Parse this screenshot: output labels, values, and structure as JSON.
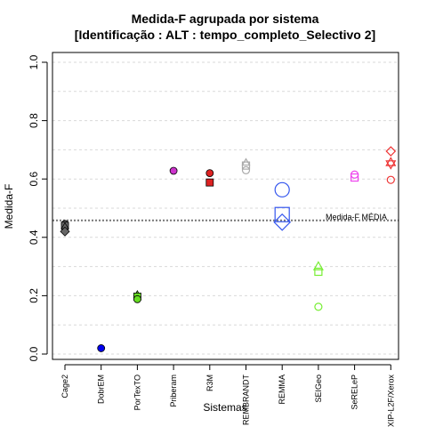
{
  "chart_data": {
    "type": "scatter",
    "title_line1": "Medida-F agrupada por sistema",
    "title_line2": "[Identificação : ALT : tempo_completo_Selectivo 2]",
    "xlabel": "Sistemas",
    "ylabel": "Medida-F",
    "ylim": [
      0,
      1.0
    ],
    "yticks": [
      {
        "value": 0.0,
        "label": "0.0"
      },
      {
        "value": 0.2,
        "label": "0.2"
      },
      {
        "value": 0.4,
        "label": "0.4"
      },
      {
        "value": 0.6,
        "label": "0.6"
      },
      {
        "value": 0.8,
        "label": "0.8"
      },
      {
        "value": 1.0,
        "label": "1.0"
      }
    ],
    "grid": true,
    "categories": [
      "Cage2",
      "DobrEM",
      "PorTexTO",
      "Priberam",
      "R3M",
      "REMBRANDT",
      "REMMA",
      "SEIGeo",
      "SeRELeP",
      "XIP-L2F/Xerox"
    ],
    "mean_line": {
      "value": 0.458,
      "label": "Medida-F MÉDIA"
    },
    "points": [
      {
        "category": 0,
        "y": 0.446,
        "shape": "circle",
        "size": 4,
        "color": "#666666",
        "fill": true
      },
      {
        "category": 0,
        "y": 0.44,
        "shape": "square",
        "size": 4,
        "color": "#666666",
        "fill": true
      },
      {
        "category": 0,
        "y": 0.436,
        "shape": "triangle",
        "size": 4,
        "color": "#666666",
        "fill": true
      },
      {
        "category": 0,
        "y": 0.42,
        "shape": "diamond",
        "size": 5,
        "color": "#666666",
        "fill": true
      },
      {
        "category": 1,
        "y": 0.02,
        "shape": "circle",
        "size": 4,
        "color": "#0000ee",
        "fill": true
      },
      {
        "category": 2,
        "y": 0.203,
        "shape": "triangle",
        "size": 4,
        "color": "#66dd22",
        "fill": true
      },
      {
        "category": 2,
        "y": 0.197,
        "shape": "square",
        "size": 4,
        "color": "#66dd22",
        "fill": true
      },
      {
        "category": 2,
        "y": 0.188,
        "shape": "circle",
        "size": 4,
        "color": "#66dd22",
        "fill": true
      },
      {
        "category": 3,
        "y": 0.628,
        "shape": "circle",
        "size": 4,
        "color": "#cc33cc",
        "fill": true
      },
      {
        "category": 4,
        "y": 0.62,
        "shape": "circle",
        "size": 4,
        "color": "#dd2222",
        "fill": true
      },
      {
        "category": 4,
        "y": 0.588,
        "shape": "square",
        "size": 4,
        "color": "#dd2222",
        "fill": true
      },
      {
        "category": 5,
        "y": 0.655,
        "shape": "triangle",
        "size": 4,
        "color": "#aaaaaa",
        "fill": false
      },
      {
        "category": 5,
        "y": 0.646,
        "shape": "square",
        "size": 4,
        "color": "#aaaaaa",
        "fill": false
      },
      {
        "category": 5,
        "y": 0.63,
        "shape": "circle",
        "size": 4,
        "color": "#aaaaaa",
        "fill": false
      },
      {
        "category": 6,
        "y": 0.563,
        "shape": "circle",
        "size": 8,
        "color": "#3355ee",
        "fill": false
      },
      {
        "category": 6,
        "y": 0.478,
        "shape": "square",
        "size": 8,
        "color": "#3355ee",
        "fill": false
      },
      {
        "category": 6,
        "y": 0.452,
        "shape": "diamond",
        "size": 9,
        "color": "#3355ee",
        "fill": false
      },
      {
        "category": 7,
        "y": 0.298,
        "shape": "triangle",
        "size": 5,
        "color": "#77ee33",
        "fill": false
      },
      {
        "category": 7,
        "y": 0.282,
        "shape": "square",
        "size": 4,
        "color": "#77ee33",
        "fill": false
      },
      {
        "category": 7,
        "y": 0.162,
        "shape": "circle",
        "size": 4,
        "color": "#77ee33",
        "fill": false
      },
      {
        "category": 8,
        "y": 0.615,
        "shape": "circle",
        "size": 4,
        "color": "#ee44ee",
        "fill": false
      },
      {
        "category": 8,
        "y": 0.605,
        "shape": "square",
        "size": 4,
        "color": "#ee44ee",
        "fill": false
      },
      {
        "category": 9,
        "y": 0.695,
        "shape": "diamond",
        "size": 5,
        "color": "#ee3333",
        "fill": false
      },
      {
        "category": 9,
        "y": 0.655,
        "shape": "triangle",
        "size": 5,
        "color": "#ee3333",
        "fill": false
      },
      {
        "category": 9,
        "y": 0.653,
        "shape": "triangle-down",
        "size": 5,
        "color": "#ee3333",
        "fill": false
      },
      {
        "category": 9,
        "y": 0.597,
        "shape": "circle",
        "size": 4,
        "color": "#ee3333",
        "fill": false
      }
    ]
  }
}
